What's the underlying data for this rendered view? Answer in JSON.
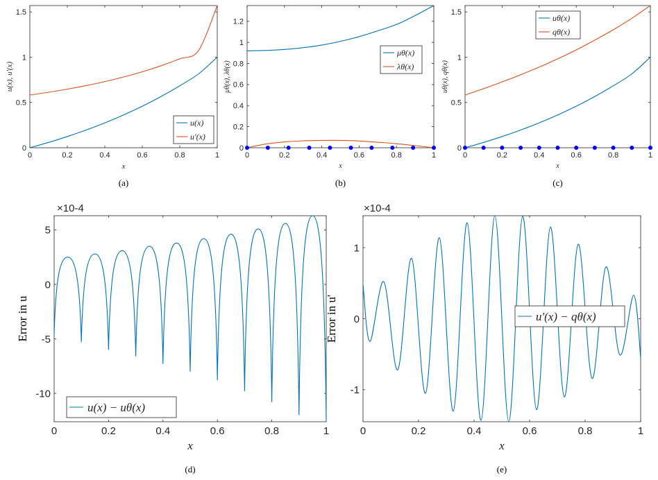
{
  "chart_data": [
    {
      "id": "a",
      "type": "line",
      "caption": "(a)",
      "xlabel": "x",
      "ylabel": "u(x), u'(x)",
      "xlim": [
        0,
        1
      ],
      "ylim": [
        0,
        1.57
      ],
      "xticks": [
        0,
        0.2,
        0.4,
        0.6,
        0.8,
        1
      ],
      "xtick_labels": [
        "0",
        "0.2",
        "0.4",
        "0.6",
        "0.8",
        "1"
      ],
      "yticks": [
        0,
        0.5,
        1,
        1.5
      ],
      "ytick_labels": [
        "0",
        "0.5",
        "1",
        "1.5"
      ],
      "legend_position": "bottom-right",
      "series": [
        {
          "name": "u(x)",
          "color": "#0072BD",
          "x": [
            0,
            0.1,
            0.2,
            0.3,
            0.4,
            0.5,
            0.6,
            0.7,
            0.8,
            0.9,
            1.0
          ],
          "y": [
            0,
            0.0589,
            0.1238,
            0.1954,
            0.2746,
            0.3621,
            0.4588,
            0.5658,
            0.6842,
            0.8153,
            1.0
          ]
        },
        {
          "name": "u'(x)",
          "color": "#D95319",
          "x": [
            0,
            0.1,
            0.2,
            0.3,
            0.4,
            0.5,
            0.6,
            0.7,
            0.8,
            0.9,
            1.0
          ],
          "y": [
            0.582,
            0.6128,
            0.6474,
            0.6864,
            0.7306,
            0.7811,
            0.8389,
            0.9056,
            0.9829,
            1.0731,
            1.5708
          ]
        }
      ]
    },
    {
      "id": "b",
      "type": "line",
      "caption": "(b)",
      "xlabel": "x",
      "ylabel": "μθ(x), λθ(x)",
      "xlim": [
        0,
        1
      ],
      "ylim": [
        0,
        1.35
      ],
      "xticks": [
        0,
        0.2,
        0.4,
        0.6,
        0.8,
        1
      ],
      "xtick_labels": [
        "0",
        "0.2",
        "0.4",
        "0.6",
        "0.8",
        "1"
      ],
      "yticks": [
        0,
        0.2,
        0.4,
        0.6,
        0.8,
        1,
        1.2
      ],
      "ytick_labels": [
        "0",
        "0.2",
        "0.4",
        "0.6",
        "0.8",
        "1",
        "1.2"
      ],
      "legend_position": "right",
      "series": [
        {
          "name": "μθ(x)",
          "color": "#0072BD",
          "x": [
            0,
            0.1,
            0.2,
            0.3,
            0.4,
            0.5,
            0.6,
            0.7,
            0.8,
            0.9,
            1.0
          ],
          "y": [
            0.92,
            0.924,
            0.933,
            0.95,
            0.975,
            1.01,
            1.055,
            1.11,
            1.17,
            1.255,
            1.35
          ]
        },
        {
          "name": "λθ(x)",
          "color": "#D95319",
          "x": [
            0,
            0.1,
            0.2,
            0.3,
            0.4,
            0.5,
            0.6,
            0.7,
            0.8,
            0.9,
            1.0
          ],
          "y": [
            0,
            0.035,
            0.055,
            0.066,
            0.07,
            0.07,
            0.064,
            0.052,
            0.038,
            0.02,
            0
          ]
        }
      ],
      "markers": {
        "color": "#0000FF",
        "x": [
          0,
          0.111,
          0.222,
          0.333,
          0.444,
          0.556,
          0.667,
          0.778,
          0.889,
          1.0
        ],
        "y": [
          0,
          0,
          0,
          0,
          0,
          0,
          0,
          0,
          0,
          0
        ]
      }
    },
    {
      "id": "c",
      "type": "line",
      "caption": "(c)",
      "xlabel": "x",
      "ylabel": "uθ(x), qθ(x)",
      "xlim": [
        0,
        1
      ],
      "ylim": [
        0,
        1.57
      ],
      "xticks": [
        0,
        0.2,
        0.4,
        0.6,
        0.8,
        1
      ],
      "xtick_labels": [
        "0",
        "0.2",
        "0.4",
        "0.6",
        "0.8",
        "1"
      ],
      "yticks": [
        0,
        0.5,
        1,
        1.5
      ],
      "ytick_labels": [
        "0",
        "0.5",
        "1",
        "1.5"
      ],
      "legend_position": "top",
      "series": [
        {
          "name": "uθ(x)",
          "color": "#0072BD",
          "x": [
            0,
            0.1,
            0.2,
            0.3,
            0.4,
            0.5,
            0.6,
            0.7,
            0.8,
            0.9,
            1.0
          ],
          "y": [
            0,
            0.0589,
            0.1238,
            0.1954,
            0.2746,
            0.3621,
            0.4588,
            0.5658,
            0.6842,
            0.8153,
            1.0
          ]
        },
        {
          "name": "qθ(x)",
          "color": "#D95319",
          "x": [
            0,
            0.1,
            0.2,
            0.3,
            0.4,
            0.5,
            0.6,
            0.7,
            0.8,
            0.9,
            1.0
          ],
          "y": [
            0.582,
            0.652,
            0.727,
            0.806,
            0.89,
            0.981,
            1.08,
            1.188,
            1.303,
            1.429,
            1.5708
          ]
        }
      ],
      "markers": {
        "color": "#0000FF",
        "x": [
          0,
          0.1,
          0.2,
          0.3,
          0.4,
          0.5,
          0.6,
          0.7,
          0.8,
          0.9,
          1.0
        ],
        "y": [
          0,
          0,
          0,
          0,
          0,
          0,
          0,
          0,
          0,
          0,
          0
        ]
      }
    },
    {
      "id": "d",
      "type": "line",
      "caption": "(d)",
      "xlabel": "x",
      "ylabel": "Error in u",
      "scale_label": "×10-4",
      "xlim": [
        0,
        1
      ],
      "ylim": [
        -12.6,
        6.3
      ],
      "xticks": [
        0,
        0.2,
        0.4,
        0.6,
        0.8,
        1
      ],
      "xtick_labels": [
        "0",
        "0.2",
        "0.4",
        "0.6",
        "0.8",
        "1"
      ],
      "yticks": [
        -10,
        -5,
        0,
        5
      ],
      "ytick_labels": [
        "-10",
        "-5",
        "0",
        "5"
      ],
      "legend_position": "bottom-left",
      "series": [
        {
          "name": "u(x) − uθ(x)",
          "color": "#0072BD",
          "x": [
            0,
            0.05,
            0.1,
            0.15,
            0.2,
            0.25,
            0.3,
            0.35,
            0.4,
            0.45,
            0.5,
            0.55,
            0.6,
            0.65,
            0.7,
            0.75,
            0.8,
            0.85,
            0.9,
            0.95,
            1.0
          ],
          "y": [
            -4.6,
            2.5,
            -5.3,
            2.8,
            -6.0,
            3.1,
            -6.6,
            3.5,
            -7.3,
            3.8,
            -8.0,
            4.2,
            -8.8,
            4.6,
            -9.8,
            5.1,
            -10.8,
            5.6,
            -12.0,
            6.3,
            -12.6
          ]
        }
      ]
    },
    {
      "id": "e",
      "type": "line",
      "caption": "(e)",
      "xlabel": "x",
      "ylabel": "Error in u'",
      "scale_label": "×10-4",
      "xlim": [
        0,
        1
      ],
      "ylim": [
        -1.45,
        1.45
      ],
      "xticks": [
        0,
        0.2,
        0.4,
        0.6,
        0.8,
        1
      ],
      "xtick_labels": [
        "0",
        "0.2",
        "0.4",
        "0.6",
        "0.8",
        "1"
      ],
      "yticks": [
        -1,
        0,
        1
      ],
      "ytick_labels": [
        "-1",
        "0",
        "1"
      ],
      "legend_position": "right",
      "series": [
        {
          "name": "u'(x) − qθ(x)",
          "color": "#0072BD",
          "x": [
            0,
            0.025,
            0.075,
            0.125,
            0.175,
            0.225,
            0.275,
            0.325,
            0.375,
            0.425,
            0.475,
            0.525,
            0.575,
            0.625,
            0.675,
            0.725,
            0.775,
            0.825,
            0.875,
            0.925,
            0.975,
            1.0
          ],
          "y": [
            0.48,
            -0.32,
            0.52,
            -0.72,
            0.85,
            -1.05,
            1.14,
            -1.3,
            1.35,
            -1.43,
            1.45,
            -1.45,
            1.44,
            -1.28,
            1.29,
            -1.1,
            1.05,
            -0.84,
            0.73,
            -0.51,
            0.33,
            -0.55
          ]
        }
      ]
    }
  ]
}
